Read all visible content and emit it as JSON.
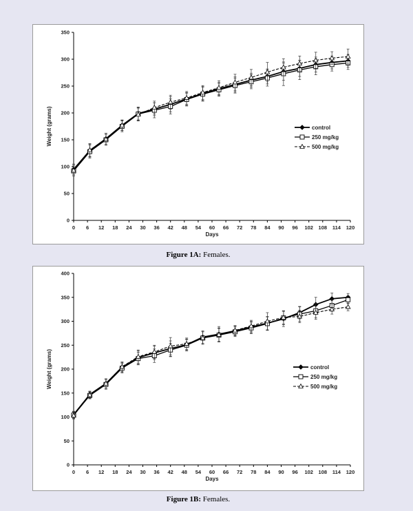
{
  "chart_data": [
    {
      "type": "line",
      "caption_label": "Figure 1A:",
      "caption_text": " Females.",
      "xlabel": "Days",
      "ylabel": "Weight (grams)",
      "ylim": [
        0,
        350
      ],
      "yticks": [
        0,
        50,
        100,
        150,
        200,
        250,
        300,
        350
      ],
      "xlim": [
        0,
        120
      ],
      "xticks": [
        0,
        6,
        12,
        18,
        24,
        30,
        36,
        42,
        48,
        54,
        60,
        66,
        72,
        78,
        84,
        90,
        96,
        102,
        108,
        114,
        120
      ],
      "x": [
        0,
        7,
        14,
        21,
        28,
        35,
        42,
        49,
        56,
        63,
        70,
        77,
        84,
        91,
        98,
        105,
        112,
        119
      ],
      "legend_position": "right",
      "series": [
        {
          "name": "control",
          "marker": "diamond",
          "dash": "solid",
          "values": [
            95,
            130,
            152,
            177,
            199,
            207,
            216,
            226,
            236,
            245,
            253,
            261,
            268,
            277,
            283,
            290,
            294,
            297
          ],
          "errors": [
            10,
            12,
            10,
            9,
            12,
            12,
            14,
            12,
            13,
            12,
            14,
            13,
            14,
            16,
            15,
            14,
            12,
            12
          ]
        },
        {
          "name": "250 mg/kg",
          "marker": "square",
          "dash": "solid",
          "values": [
            92,
            128,
            150,
            175,
            198,
            205,
            212,
            225,
            235,
            243,
            251,
            258,
            265,
            273,
            280,
            286,
            290,
            293
          ],
          "errors": [
            9,
            12,
            10,
            10,
            12,
            14,
            14,
            12,
            13,
            12,
            14,
            13,
            15,
            22,
            18,
            15,
            12,
            12
          ]
        },
        {
          "name": "500 mg/kg",
          "marker": "triangle",
          "dash": "dashed",
          "values": [
            93,
            131,
            151,
            177,
            197,
            210,
            220,
            228,
            238,
            247,
            257,
            266,
            276,
            285,
            292,
            298,
            302,
            305
          ],
          "errors": [
            10,
            12,
            11,
            10,
            12,
            12,
            13,
            12,
            13,
            13,
            15,
            15,
            18,
            16,
            14,
            15,
            12,
            14
          ]
        }
      ]
    },
    {
      "type": "line",
      "caption_label": "Figure 1B:",
      "caption_text": " Females.",
      "xlabel": "Days",
      "ylabel": "Weight (grams)",
      "ylim": [
        0,
        400
      ],
      "yticks": [
        0,
        50,
        100,
        150,
        200,
        250,
        300,
        350,
        400
      ],
      "xlim": [
        0,
        120
      ],
      "xticks": [
        0,
        6,
        12,
        18,
        24,
        30,
        36,
        42,
        48,
        54,
        60,
        66,
        72,
        78,
        84,
        90,
        96,
        102,
        108,
        114,
        120
      ],
      "x": [
        0,
        7,
        14,
        21,
        28,
        35,
        42,
        49,
        56,
        63,
        70,
        77,
        84,
        91,
        98,
        105,
        112,
        119
      ],
      "legend_position": "right",
      "series": [
        {
          "name": "control",
          "marker": "diamond",
          "dash": "solid",
          "values": [
            105,
            147,
            170,
            204,
            224,
            234,
            243,
            251,
            267,
            273,
            280,
            288,
            296,
            305,
            318,
            335,
            347,
            350
          ],
          "errors": [
            7,
            7,
            10,
            10,
            14,
            14,
            16,
            12,
            13,
            16,
            10,
            12,
            14,
            16,
            13,
            15,
            12,
            8
          ]
        },
        {
          "name": "250 mg/kg",
          "marker": "square",
          "dash": "solid",
          "values": [
            104,
            145,
            168,
            202,
            222,
            228,
            240,
            250,
            265,
            271,
            278,
            286,
            295,
            307,
            315,
            322,
            333,
            345
          ],
          "errors": [
            7,
            7,
            10,
            10,
            13,
            14,
            14,
            12,
            13,
            14,
            10,
            12,
            14,
            14,
            15,
            15,
            12,
            8
          ]
        },
        {
          "name": "500 mg/kg",
          "marker": "triangle",
          "dash": "dashed",
          "values": [
            103,
            146,
            170,
            205,
            226,
            236,
            248,
            253,
            265,
            272,
            281,
            290,
            300,
            308,
            310,
            318,
            325,
            330
          ],
          "errors": [
            7,
            7,
            10,
            10,
            14,
            14,
            18,
            12,
            13,
            14,
            10,
            12,
            18,
            14,
            13,
            14,
            10,
            8
          ]
        }
      ]
    }
  ]
}
